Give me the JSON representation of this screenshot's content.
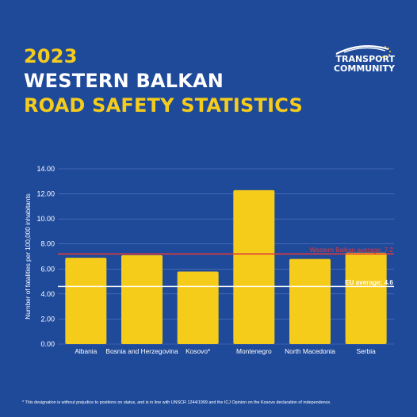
{
  "title": {
    "line1": "2023",
    "line2": "WESTERN BALKAN",
    "line3": "ROAD SAFETY STATISTICS"
  },
  "logo": {
    "line1": "TRANSPORT",
    "line2": "COMMUNITY",
    "icon": "swoosh-with-eu-stars-icon"
  },
  "colors": {
    "background": "#1f4a9a",
    "bar": "#f6cc1b",
    "title_yellow": "#f6cc1b",
    "wb_line": "#e0393f",
    "eu_line": "#ffffff"
  },
  "chart_data": {
    "type": "bar",
    "categories": [
      "Albania",
      "Bosnia and Herzegovina",
      "Kosovo*",
      "Montenegro",
      "North Macedonia",
      "Serbia"
    ],
    "values": [
      6.9,
      7.1,
      5.8,
      12.3,
      6.8,
      7.3
    ],
    "ylabel": "Number of fatalities per 100,000 inhabitants",
    "xlabel": "",
    "ylim": [
      0,
      14
    ],
    "yticks": [
      "0.00",
      "2.00",
      "4.00",
      "6.00",
      "8.00",
      "10.00",
      "12.00",
      "14.00"
    ],
    "grid": true,
    "reference_lines": [
      {
        "label": "Western Balkan average: 7.2",
        "value": 7.2,
        "color": "#e0393f"
      },
      {
        "label": "EU average: 4.6",
        "value": 4.6,
        "color": "#ffffff"
      }
    ]
  },
  "footnote": "* This designation is without prejudice to positions on status, and is in line with UNSCR 1244/1999 and the ICJ Opinion on the Kosovo declaration of independence."
}
